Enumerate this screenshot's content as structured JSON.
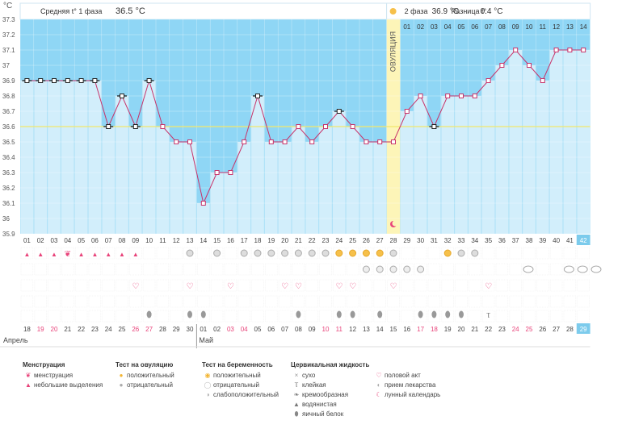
{
  "unit": "°C",
  "phase1": {
    "label": "Средняя t° 1 фаза",
    "value": "36.5 °C"
  },
  "phase2": {
    "label": "2 фаза",
    "value": "36.9 °C"
  },
  "diff": {
    "label": "Разница t°",
    "value": "0.4 °C"
  },
  "ovulation_label": "ОВУЛЯЦИЯ",
  "months": {
    "april": "Апрель",
    "may": "Май"
  },
  "chart_data": {
    "type": "line",
    "ylim": [
      35.9,
      37.3
    ],
    "yticks": [
      "37.3",
      "37.2",
      "37.1",
      "37",
      "36.9",
      "36.8",
      "36.7",
      "36.6",
      "36.5",
      "36.4",
      "36.3",
      "36.2",
      "36.1",
      "36",
      "35.9"
    ],
    "cycle_days": [
      "01",
      "02",
      "03",
      "04",
      "05",
      "06",
      "07",
      "08",
      "09",
      "10",
      "11",
      "12",
      "13",
      "14",
      "15",
      "16",
      "17",
      "18",
      "19",
      "20",
      "21",
      "22",
      "23",
      "24",
      "25",
      "26",
      "27",
      "28",
      "29",
      "30",
      "31",
      "32",
      "33",
      "34",
      "35",
      "36",
      "37",
      "38",
      "39",
      "40",
      "41",
      "42"
    ],
    "phase2_days": [
      "01",
      "02",
      "03",
      "04",
      "05",
      "06",
      "07",
      "08",
      "09",
      "10",
      "11",
      "12",
      "13",
      "14"
    ],
    "dates": [
      "18",
      "19",
      "20",
      "21",
      "22",
      "23",
      "24",
      "25",
      "26",
      "27",
      "28",
      "29",
      "30",
      "01",
      "02",
      "03",
      "04",
      "05",
      "06",
      "07",
      "08",
      "09",
      "10",
      "11",
      "12",
      "13",
      "14",
      "15",
      "16",
      "17",
      "18",
      "19",
      "20",
      "21",
      "22",
      "23",
      "24",
      "25",
      "26",
      "27",
      "28",
      "29"
    ],
    "weekend_dates_idx": [
      1,
      2,
      8,
      9,
      15,
      16,
      22,
      23,
      29,
      30,
      36,
      37
    ],
    "temps": [
      36.9,
      36.9,
      36.9,
      36.9,
      36.9,
      36.9,
      36.6,
      36.8,
      36.6,
      36.9,
      36.6,
      36.5,
      36.5,
      36.1,
      36.3,
      36.3,
      36.5,
      36.8,
      36.5,
      36.5,
      36.6,
      36.5,
      36.6,
      36.7,
      36.6,
      36.5,
      36.5,
      36.5,
      36.7,
      36.8,
      36.6,
      36.8,
      36.8,
      36.8,
      36.9,
      37.0,
      37.1,
      37.0,
      36.9,
      37.1,
      37.1,
      37.1
    ],
    "excluded_idx": [
      0,
      1,
      2,
      3,
      4,
      5,
      6,
      7,
      8,
      9,
      17,
      23,
      30
    ],
    "coverline": 36.6,
    "ovulation_day_idx": 27
  },
  "symptoms": {
    "menses_big": [
      3
    ],
    "menses_small": [
      0,
      1,
      2,
      4,
      5,
      6,
      7,
      8
    ],
    "ovulation_negative": [
      12,
      14,
      16,
      17,
      18,
      19,
      20,
      21,
      22,
      27,
      32,
      33
    ],
    "ovulation_positive": [
      23,
      24,
      25,
      26,
      31
    ],
    "pregnancy_negative_row": [
      25,
      26,
      27,
      28,
      29
    ],
    "love_days": [
      8,
      12,
      15,
      19,
      20,
      23,
      24,
      27,
      34
    ],
    "cloud_days": [
      37,
      40,
      41,
      42
    ],
    "fluid_white_days": [
      9,
      12,
      13,
      20,
      23,
      24,
      26,
      29,
      30,
      31,
      32
    ],
    "sticky_days": [
      34
    ]
  },
  "legend": {
    "menstruation": {
      "title": "Менструация",
      "items": [
        "менструация",
        "небольшие выделения"
      ]
    },
    "ovulation_test": {
      "title": "Тест на овуляцию",
      "items": [
        "положительный",
        "отрицательный"
      ]
    },
    "pregnancy_test": {
      "title": "Тест на беременность",
      "items": [
        "положительный",
        "отрицательный",
        "слабоположительный"
      ]
    },
    "fluid": {
      "title": "Цервикальная жидкость",
      "items": [
        "сухо",
        "клейкая",
        "кремообразная",
        "водянистая",
        "яичный белок"
      ]
    },
    "other": {
      "items": [
        "половой акт",
        "прием лекарства",
        "лунный календарь"
      ]
    }
  },
  "colors": {
    "bg_blue": "#8fd6f5",
    "bar": "#d2eefb",
    "line": "#c8336a",
    "ovu": "#fdf5b8",
    "today": "#7ccbec"
  }
}
